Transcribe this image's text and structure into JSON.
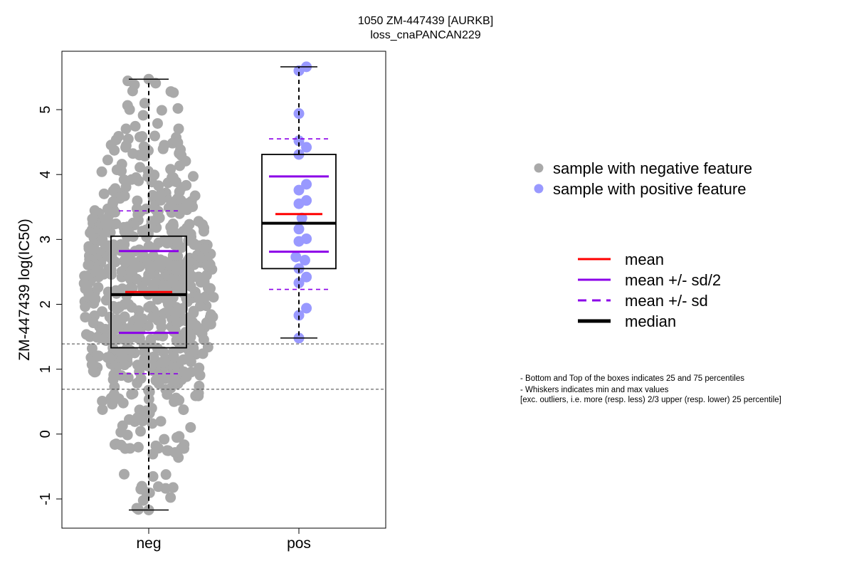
{
  "chart_data": {
    "type": "box",
    "title": "1050 ZM-447439 [AURKB]",
    "subtitle": "loss_cnaPANCAN229",
    "ylabel": "ZM-447439 log(IC50)",
    "ylim": [
      -1.45,
      5.9
    ],
    "yticks": [
      -1,
      0,
      1,
      2,
      3,
      4,
      5
    ],
    "categories": [
      "neg",
      "pos"
    ],
    "reference_lines": [
      1.39,
      0.69
    ],
    "groups": [
      {
        "name": "neg",
        "color": "#a9a9a9",
        "whisker_min": -1.17,
        "q1": 1.33,
        "median": 2.15,
        "q3": 3.05,
        "whisker_max": 5.47,
        "mean": 2.19,
        "mean_minus_half_sd": 1.56,
        "mean_plus_half_sd": 2.82,
        "mean_minus_sd": 0.93,
        "mean_plus_sd": 3.44,
        "n_points": 700
      },
      {
        "name": "pos",
        "color": "#9999ff",
        "whisker_min": 1.48,
        "q1": 2.55,
        "median": 3.25,
        "q3": 4.31,
        "whisker_max": 5.66,
        "mean": 3.39,
        "mean_minus_half_sd": 2.81,
        "mean_plus_half_sd": 3.97,
        "mean_minus_sd": 2.23,
        "mean_plus_sd": 4.55,
        "points": [
          {
            "x": 2.05,
            "y": 5.66
          },
          {
            "x": 2.0,
            "y": 5.6
          },
          {
            "x": 2.0,
            "y": 4.94
          },
          {
            "x": 2.0,
            "y": 4.52
          },
          {
            "x": 2.05,
            "y": 4.42
          },
          {
            "x": 2.0,
            "y": 4.31
          },
          {
            "x": 2.05,
            "y": 3.85
          },
          {
            "x": 2.0,
            "y": 3.76
          },
          {
            "x": 2.05,
            "y": 3.6
          },
          {
            "x": 2.0,
            "y": 3.55
          },
          {
            "x": 2.02,
            "y": 3.33
          },
          {
            "x": 2.0,
            "y": 3.16
          },
          {
            "x": 2.05,
            "y": 3.01
          },
          {
            "x": 2.0,
            "y": 2.97
          },
          {
            "x": 1.98,
            "y": 2.73
          },
          {
            "x": 2.04,
            "y": 2.68
          },
          {
            "x": 2.0,
            "y": 2.55
          },
          {
            "x": 2.05,
            "y": 2.42
          },
          {
            "x": 2.0,
            "y": 2.33
          },
          {
            "x": 2.05,
            "y": 1.94
          },
          {
            "x": 2.0,
            "y": 1.83
          },
          {
            "x": 2.0,
            "y": 1.48
          }
        ]
      }
    ],
    "legend_points": [
      {
        "label": "sample with negative feature",
        "color": "#a9a9a9"
      },
      {
        "label": "sample with positive feature",
        "color": "#9999ff"
      }
    ],
    "legend_lines": [
      {
        "label": "mean",
        "color": "#ff0000",
        "style": "solid"
      },
      {
        "label": "mean +/- sd/2",
        "color": "#8b00e8",
        "style": "solid"
      },
      {
        "label": "mean +/- sd",
        "color": "#8b00e8",
        "style": "dashed"
      },
      {
        "label": "median",
        "color": "#000000",
        "style": "thick"
      }
    ],
    "notes": [
      "- Bottom and Top of the boxes indicates 25 and 75 percentiles",
      "- Whiskers indicates min and max values",
      "[exc. outliers, i.e. more (resp. less) 2/3 upper (resp. lower) 25 percentile]"
    ]
  }
}
